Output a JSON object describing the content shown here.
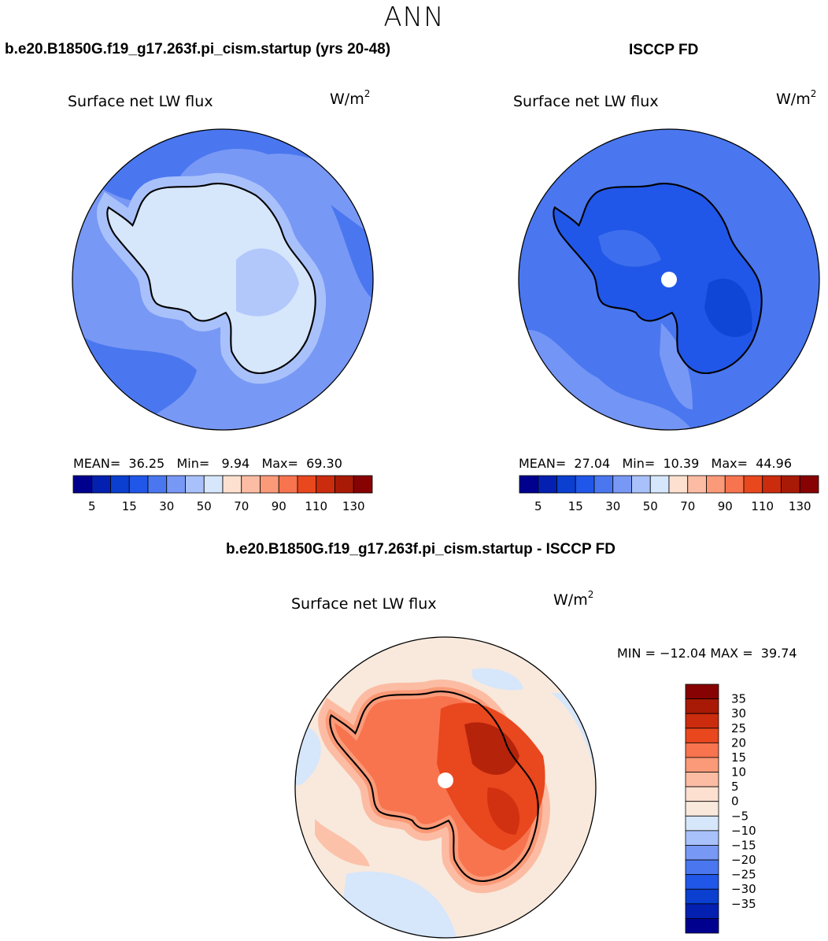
{
  "figure": {
    "title": "ANN",
    "colors": {
      "blues": [
        "#00008f",
        "#0420b0",
        "#0a3fcf",
        "#2157e8",
        "#4a77ef",
        "#7898f5",
        "#a9c1fb",
        "#d6e6fb"
      ],
      "reds": [
        "#fde0d0",
        "#fcbca3",
        "#fb9a78",
        "#f7744f",
        "#e9471e",
        "#cc2c0e",
        "#a81a06",
        "#870202"
      ],
      "neutral": "#f8e9dc"
    }
  },
  "chart_data": [
    {
      "type": "heatmap",
      "panel": "model",
      "header": "b.e20.B1850G.f19_g17.263f.pi_cism.startup (yrs 20-48)",
      "title": "Surface net LW flux",
      "units": "W/m",
      "units_exp": "2",
      "stats": {
        "mean_label": "MEAN=",
        "mean": "36.25",
        "min_label": "Min=",
        "min": "9.94",
        "max_label": "Max=",
        "max": "69.30"
      },
      "colorbar": {
        "orientation": "horizontal",
        "tick_labels": [
          "5",
          "15",
          "30",
          "50",
          "70",
          "90",
          "110",
          "130"
        ],
        "levels": [
          5,
          10,
          15,
          20,
          30,
          40,
          50,
          60,
          70,
          80,
          90,
          100,
          110,
          120,
          130
        ]
      }
    },
    {
      "type": "heatmap",
      "panel": "obs",
      "header": "ISCCP FD",
      "title": "Surface net LW flux",
      "units": "W/m",
      "units_exp": "2",
      "stats": {
        "mean_label": "MEAN=",
        "mean": "27.04",
        "min_label": "Min=",
        "min": "10.39",
        "max_label": "Max=",
        "max": "44.96"
      },
      "colorbar": {
        "orientation": "horizontal",
        "tick_labels": [
          "5",
          "15",
          "30",
          "50",
          "70",
          "90",
          "110",
          "130"
        ],
        "levels": [
          5,
          10,
          15,
          20,
          30,
          40,
          50,
          60,
          70,
          80,
          90,
          100,
          110,
          120,
          130
        ]
      }
    },
    {
      "type": "heatmap",
      "panel": "diff",
      "header": "b.e20.B1850G.f19_g17.263f.pi_cism.startup - ISCCP FD",
      "title": "Surface net LW flux",
      "units": "W/m",
      "units_exp": "2",
      "stats": {
        "min_label": "MIN =",
        "min": "−12.04",
        "max_label": "MAX =",
        "max": "39.74"
      },
      "colorbar": {
        "orientation": "vertical",
        "tick_labels": [
          "35",
          "30",
          "25",
          "20",
          "15",
          "10",
          "5",
          "0",
          "−5",
          "−10",
          "−15",
          "−20",
          "−25",
          "−30",
          "−35"
        ]
      }
    }
  ]
}
